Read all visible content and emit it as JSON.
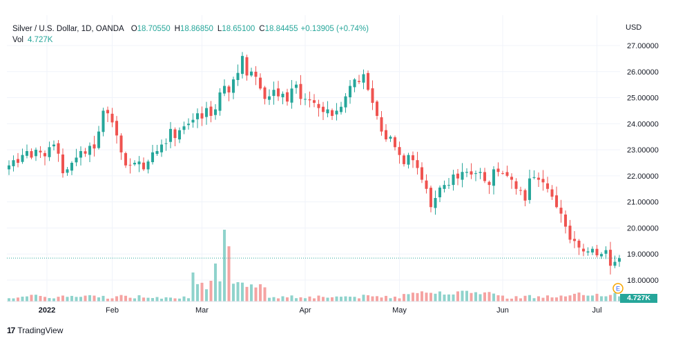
{
  "legend": {
    "symbol": "Silver / U.S. Dollar, 1D, OANDA",
    "open_label": "O",
    "open": "18.70550",
    "high_label": "H",
    "high": "18.86850",
    "low_label": "L",
    "low": "18.65100",
    "close_label": "C",
    "close": "18.84455",
    "change": "+0.13905 (+0.74%)",
    "vol_label": "Vol",
    "vol": "4.727K"
  },
  "currency": "USD",
  "volume_tag": "4.727K",
  "footer": {
    "logo": "17",
    "brand": "TradingView"
  },
  "colors": {
    "up": "#26a69a",
    "down": "#ef5350",
    "up_vol": "#8fd3cc",
    "down_vol": "#f5a3a2",
    "grid": "#f0f3fa",
    "dotted": "#26a69a"
  },
  "chart_data": {
    "type": "candlestick",
    "title": "Silver / U.S. Dollar, 1D, OANDA",
    "price_axis_labels": [
      "27.00000",
      "26.00000",
      "25.00000",
      "24.00000",
      "23.00000",
      "22.00000",
      "21.00000",
      "20.00000",
      "19.00000",
      "18.00000"
    ],
    "ylim": [
      17.7,
      27.45
    ],
    "time_axis_labels": [
      "2022",
      "Feb",
      "Mar",
      "Apr",
      "May",
      "Jun",
      "Jul"
    ],
    "time_axis_positions": [
      0,
      23,
      43,
      66,
      87,
      110,
      131
    ],
    "last_close": 18.84455,
    "closes": [
      22.4,
      22.6,
      22.5,
      22.8,
      22.95,
      22.7,
      23.0,
      22.9,
      22.75,
      23.1,
      23.2,
      22.85,
      22.1,
      22.25,
      22.5,
      22.7,
      22.95,
      22.85,
      23.15,
      23.05,
      23.7,
      24.5,
      24.4,
      24.05,
      23.55,
      22.9,
      22.4,
      22.4,
      22.5,
      22.55,
      22.25,
      22.55,
      22.9,
      22.95,
      23.2,
      23.25,
      23.8,
      23.45,
      23.75,
      23.9,
      24.0,
      24.15,
      24.4,
      24.2,
      24.6,
      24.3,
      24.55,
      25.2,
      25.45,
      25.2,
      25.7,
      25.95,
      26.6,
      25.85,
      26.0,
      25.8,
      25.35,
      24.95,
      25.05,
      25.3,
      25.05,
      25.15,
      24.85,
      25.35,
      25.5,
      24.95,
      24.95,
      24.9,
      24.8,
      24.6,
      24.45,
      24.55,
      24.3,
      24.5,
      24.65,
      25.05,
      25.45,
      25.7,
      25.6,
      25.9,
      25.3,
      24.8,
      24.3,
      23.7,
      23.4,
      23.5,
      23.1,
      22.8,
      22.45,
      22.8,
      22.6,
      22.3,
      21.85,
      21.5,
      20.8,
      21.15,
      21.55,
      21.65,
      21.65,
      22.05,
      21.9,
      22.15,
      22.15,
      22.05,
      22.1,
      22.15,
      21.8,
      21.65,
      22.25,
      22.15,
      22.1,
      22.0,
      21.85,
      21.5,
      21.45,
      21.05,
      21.9,
      21.95,
      21.85,
      21.75,
      21.5,
      21.2,
      20.8,
      20.55,
      20.05,
      19.55,
      19.5,
      19.25,
      19.1,
      19.1,
      19.2,
      18.95,
      19.0,
      19.15,
      18.55,
      18.7,
      18.84
    ]
  }
}
